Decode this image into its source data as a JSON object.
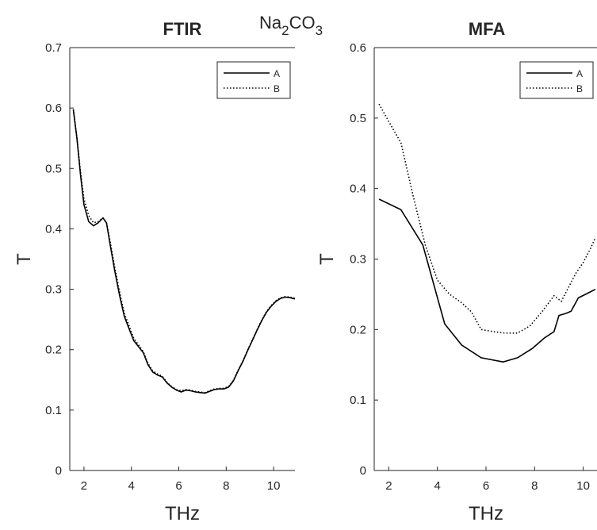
{
  "figure": {
    "suptitle": {
      "base": "Na",
      "sub1": "2",
      "mid": "CO",
      "sub2": "3"
    }
  },
  "chart_data": [
    {
      "type": "line",
      "title": "FTIR",
      "xlabel": "THz",
      "ylabel": "T",
      "xlim": [
        1.4,
        10.9
      ],
      "ylim": [
        0,
        0.7
      ],
      "xticks": [
        2,
        4,
        6,
        8,
        10
      ],
      "yticks": [
        0,
        0.1,
        0.2,
        0.3,
        0.4,
        0.5,
        0.6,
        0.7
      ],
      "ytick_labels": [
        "0",
        "0.1",
        "0.2",
        "0.3",
        "0.4",
        "0.5",
        "0.6",
        "0.7"
      ],
      "legend_position": "top-right",
      "series": [
        {
          "name": "A",
          "style": "solid",
          "x": [
            1.55,
            1.7,
            1.85,
            2.0,
            2.2,
            2.4,
            2.6,
            2.8,
            2.95,
            3.1,
            3.3,
            3.5,
            3.7,
            3.9,
            4.1,
            4.3,
            4.5,
            4.7,
            4.9,
            5.1,
            5.3,
            5.5,
            5.7,
            5.9,
            6.1,
            6.3,
            6.5,
            6.7,
            6.9,
            7.1,
            7.3,
            7.5,
            7.7,
            7.9,
            8.1,
            8.3,
            8.5,
            8.7,
            8.9,
            9.1,
            9.3,
            9.5,
            9.7,
            9.9,
            10.1,
            10.3,
            10.5,
            10.7,
            10.9
          ],
          "y": [
            0.597,
            0.55,
            0.49,
            0.44,
            0.412,
            0.405,
            0.41,
            0.418,
            0.41,
            0.375,
            0.33,
            0.29,
            0.255,
            0.235,
            0.215,
            0.205,
            0.195,
            0.175,
            0.163,
            0.158,
            0.155,
            0.145,
            0.138,
            0.133,
            0.13,
            0.133,
            0.132,
            0.13,
            0.129,
            0.128,
            0.131,
            0.134,
            0.135,
            0.135,
            0.138,
            0.148,
            0.165,
            0.18,
            0.198,
            0.215,
            0.232,
            0.248,
            0.262,
            0.272,
            0.28,
            0.285,
            0.287,
            0.286,
            0.284
          ]
        },
        {
          "name": "B",
          "style": "dotted",
          "x": [
            1.55,
            1.7,
            1.85,
            2.0,
            2.2,
            2.4,
            2.6,
            2.8,
            2.95,
            3.1,
            3.3,
            3.5,
            3.7,
            3.9,
            4.1,
            4.3,
            4.5,
            4.7,
            4.9,
            5.1,
            5.3,
            5.5,
            5.7,
            5.9,
            6.1,
            6.3,
            6.5,
            6.7,
            6.9,
            7.1,
            7.3,
            7.5,
            7.7,
            7.9,
            8.1,
            8.3,
            8.5,
            8.7,
            8.9,
            9.1,
            9.3,
            9.5,
            9.7,
            9.9,
            10.1,
            10.3,
            10.5,
            10.7,
            10.9
          ],
          "y": [
            0.598,
            0.552,
            0.495,
            0.45,
            0.422,
            0.41,
            0.412,
            0.418,
            0.41,
            0.38,
            0.336,
            0.296,
            0.26,
            0.24,
            0.219,
            0.208,
            0.197,
            0.177,
            0.165,
            0.16,
            0.156,
            0.146,
            0.139,
            0.134,
            0.132,
            0.134,
            0.133,
            0.131,
            0.13,
            0.129,
            0.132,
            0.135,
            0.136,
            0.136,
            0.139,
            0.149,
            0.166,
            0.181,
            0.199,
            0.216,
            0.233,
            0.249,
            0.263,
            0.273,
            0.281,
            0.286,
            0.288,
            0.287,
            0.285
          ]
        }
      ]
    },
    {
      "type": "line",
      "title": "MFA",
      "xlabel": "THz",
      "ylabel": "T",
      "xlim": [
        1.4,
        10.6
      ],
      "ylim": [
        0,
        0.6
      ],
      "xticks": [
        2,
        4,
        6,
        8,
        10
      ],
      "yticks": [
        0,
        0.1,
        0.2,
        0.3,
        0.4,
        0.5,
        0.6
      ],
      "ytick_labels": [
        "0",
        "0.1",
        "0.2",
        "0.3",
        "0.4",
        "0.5",
        "0.6"
      ],
      "legend_position": "top-right",
      "series": [
        {
          "name": "A",
          "style": "solid",
          "x": [
            1.6,
            2.5,
            3.4,
            4.3,
            5.0,
            5.8,
            6.7,
            7.3,
            7.9,
            8.4,
            8.8,
            9.0,
            9.3,
            9.5,
            9.8,
            10.1,
            10.5
          ],
          "y": [
            0.385,
            0.37,
            0.32,
            0.208,
            0.178,
            0.16,
            0.154,
            0.16,
            0.173,
            0.188,
            0.197,
            0.22,
            0.223,
            0.226,
            0.245,
            0.25,
            0.257
          ]
        },
        {
          "name": "B",
          "style": "dotted",
          "x": [
            1.6,
            2.0,
            2.5,
            3.0,
            3.5,
            4.0,
            4.5,
            5.0,
            5.4,
            5.8,
            6.3,
            6.8,
            7.3,
            7.8,
            8.3,
            8.8,
            9.1,
            9.4,
            9.7,
            10.0,
            10.3,
            10.5
          ],
          "y": [
            0.52,
            0.495,
            0.465,
            0.39,
            0.32,
            0.27,
            0.25,
            0.238,
            0.225,
            0.2,
            0.197,
            0.195,
            0.195,
            0.205,
            0.225,
            0.248,
            0.24,
            0.26,
            0.28,
            0.295,
            0.315,
            0.33
          ]
        }
      ]
    }
  ]
}
